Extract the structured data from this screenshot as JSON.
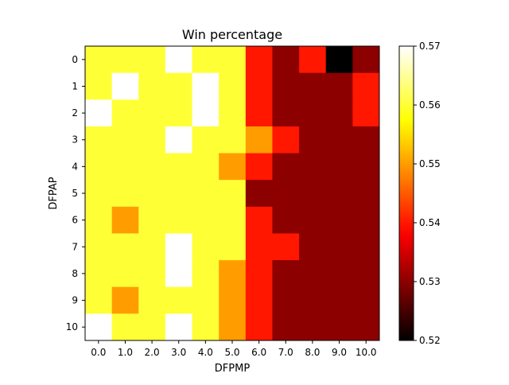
{
  "chart_data": {
    "type": "heatmap",
    "title": "Win percentage",
    "xlabel": "DFPMP",
    "ylabel": "DFPAP",
    "x_categories": [
      "0.0",
      "1.0",
      "2.0",
      "3.0",
      "4.0",
      "5.0",
      "6.0",
      "7.0",
      "8.0",
      "9.0",
      "10.0"
    ],
    "y_categories": [
      "0",
      "1",
      "2",
      "3",
      "4",
      "5",
      "6",
      "7",
      "8",
      "9",
      "10"
    ],
    "values": [
      [
        0.56,
        0.56,
        0.56,
        0.57,
        0.56,
        0.56,
        0.54,
        0.53,
        0.54,
        0.52,
        0.53
      ],
      [
        0.56,
        0.57,
        0.56,
        0.56,
        0.57,
        0.56,
        0.54,
        0.53,
        0.53,
        0.53,
        0.54
      ],
      [
        0.57,
        0.56,
        0.56,
        0.56,
        0.57,
        0.56,
        0.54,
        0.53,
        0.53,
        0.53,
        0.54
      ],
      [
        0.56,
        0.56,
        0.56,
        0.57,
        0.56,
        0.56,
        0.55,
        0.54,
        0.53,
        0.53,
        0.53
      ],
      [
        0.56,
        0.56,
        0.56,
        0.56,
        0.56,
        0.55,
        0.54,
        0.53,
        0.53,
        0.53,
        0.53
      ],
      [
        0.56,
        0.56,
        0.56,
        0.56,
        0.56,
        0.56,
        0.53,
        0.53,
        0.53,
        0.53,
        0.53
      ],
      [
        0.56,
        0.55,
        0.56,
        0.56,
        0.56,
        0.56,
        0.54,
        0.53,
        0.53,
        0.53,
        0.53
      ],
      [
        0.56,
        0.56,
        0.56,
        0.57,
        0.56,
        0.56,
        0.54,
        0.54,
        0.53,
        0.53,
        0.53
      ],
      [
        0.56,
        0.56,
        0.56,
        0.57,
        0.56,
        0.55,
        0.54,
        0.53,
        0.53,
        0.53,
        0.53
      ],
      [
        0.56,
        0.55,
        0.56,
        0.56,
        0.56,
        0.55,
        0.54,
        0.53,
        0.53,
        0.53,
        0.53
      ],
      [
        0.57,
        0.56,
        0.56,
        0.57,
        0.56,
        0.55,
        0.54,
        0.53,
        0.53,
        0.53,
        0.53
      ]
    ],
    "colormap": "hot",
    "colorbar": {
      "range": [
        0.52,
        0.57
      ],
      "ticks": [
        "0.52",
        "0.53",
        "0.54",
        "0.55",
        "0.56",
        "0.57"
      ]
    },
    "grid": false,
    "legend": "colorbar-right"
  }
}
